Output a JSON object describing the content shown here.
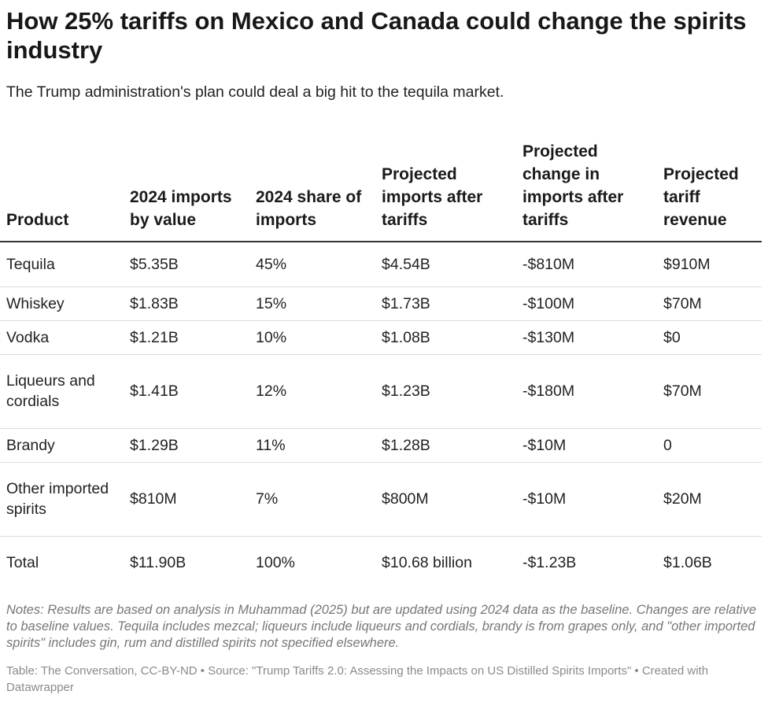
{
  "title": "How 25% tariffs on Mexico and Canada could change the spirits industry",
  "subtitle": "The Trump administration's plan could deal a big hit to the tequila market.",
  "chart_data": {
    "type": "table",
    "columns": [
      "Product",
      "2024 imports by value",
      "2024 share of imports",
      "Projected imports after tariffs",
      "Projected change in imports after tariffs",
      "Projected tariff revenue"
    ],
    "rows": [
      [
        "Tequila",
        "$5.35B",
        "45%",
        "$4.54B",
        "-$810M",
        "$910M"
      ],
      [
        "Whiskey",
        "$1.83B",
        "15%",
        "$1.73B",
        "-$100M",
        "$70M"
      ],
      [
        "Vodka",
        "$1.21B",
        "10%",
        "$1.08B",
        "-$130M",
        "$0"
      ],
      [
        "Liqueurs and cordials",
        "$1.41B",
        "12%",
        "$1.23B",
        "-$180M",
        "$70M"
      ],
      [
        "Brandy",
        "$1.29B",
        "11%",
        "$1.28B",
        "-$10M",
        "0"
      ],
      [
        "Other imported spirits",
        "$810M",
        "7%",
        "$800M",
        "-$10M",
        "$20M"
      ],
      [
        "Total",
        "$11.90B",
        "100%",
        "$10.68 billion",
        "-$1.23B",
        "$1.06B"
      ]
    ]
  },
  "notes": "Notes: Results are based on analysis in Muhammad (2025) but are updated using 2024 data as the baseline. Changes are relative to baseline values. Tequila includes mezcal; liqueurs include liqueurs and cordials, brandy is from grapes only, and \"other imported spirits\" includes gin, rum and distilled spirits not specified elsewhere.",
  "source": "Table: The Conversation, CC-BY-ND • Source: \"Trump Tariffs 2.0: Assessing the Impacts on US Distilled Spirits Imports\" • Created with Datawrapper"
}
